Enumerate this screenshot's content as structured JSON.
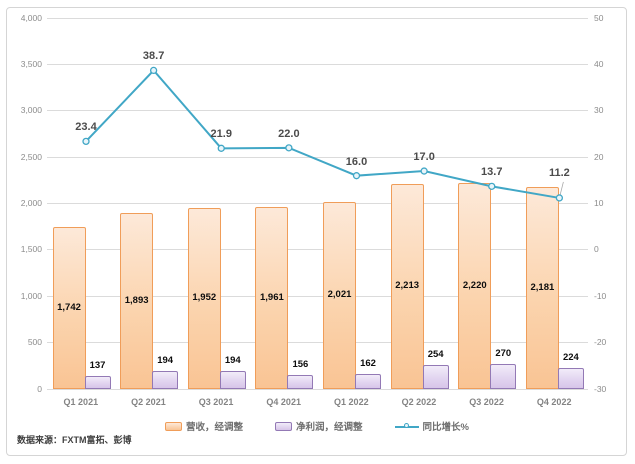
{
  "chart_data": {
    "type": "bar",
    "subtype": "combo-bar-line-dual-axis",
    "categories": [
      "Q1 2021",
      "Q2 2021",
      "Q3 2021",
      "Q4 2021",
      "Q1 2022",
      "Q2 2022",
      "Q3 2022",
      "Q4 2022"
    ],
    "series": [
      {
        "name": "营收，经调整",
        "type": "bar",
        "axis": "left",
        "values": [
          1742,
          1893,
          1952,
          1961,
          2021,
          2213,
          2220,
          2181
        ],
        "labels": [
          "1,742",
          "1,893",
          "1,952",
          "1,961",
          "2,021",
          "2,213",
          "2,220",
          "2,181"
        ],
        "fill_top": "#FDE9D9",
        "fill_bottom": "#F9C494",
        "border": "#F09D59"
      },
      {
        "name": "净利润，经调整",
        "type": "bar",
        "axis": "left",
        "values": [
          137,
          194,
          194,
          156,
          162,
          254,
          270,
          224
        ],
        "labels": [
          "137",
          "194",
          "194",
          "156",
          "162",
          "254",
          "270",
          "224"
        ],
        "fill_top": "#F2ECF9",
        "fill_bottom": "#D7C5E9",
        "border": "#9379B5"
      },
      {
        "name": "同比增长%",
        "type": "line",
        "axis": "right",
        "values": [
          23.4,
          38.7,
          21.9,
          22.0,
          16.0,
          17.0,
          13.7,
          11.2
        ],
        "labels": [
          "23.4",
          "38.7",
          "21.9",
          "22.0",
          "16.0",
          "17.0",
          "13.7",
          "11.2"
        ],
        "color": "#41A7C6",
        "marker_fill": "#EAF5FA"
      }
    ],
    "left_axis": {
      "min": 0,
      "max": 4000,
      "step": 500,
      "ticks": [
        "4,000",
        "3,500",
        "3,000",
        "2,500",
        "2,000",
        "1,500",
        "1,000",
        "500",
        "0"
      ]
    },
    "right_axis": {
      "min": -30,
      "max": 50,
      "step": 10,
      "ticks": [
        "50",
        "40",
        "30",
        "20",
        "10",
        "0",
        "-10",
        "-20",
        "-30"
      ]
    },
    "grid": true,
    "grid_color": "#DBDBDB",
    "legend_position": "bottom",
    "source": "数据来源：FXTM富拓、彭博"
  }
}
